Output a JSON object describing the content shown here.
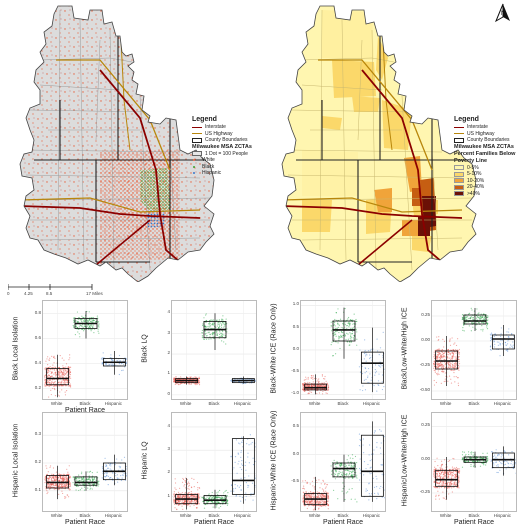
{
  "maps": {
    "north_arrow_label": "N",
    "left_legend": {
      "title": "Legend",
      "items": [
        {
          "label": "Interstate",
          "color": "#8b0000"
        },
        {
          "label": "US Highway",
          "color": "#b8860b"
        },
        {
          "label": "County Boundaries",
          "color": "#222222"
        }
      ],
      "subtitle": "Milwaukee MSA ZCTAs",
      "dot_title": "1 Dot = 100 People",
      "dots": [
        {
          "label": "White",
          "color": "#e8603c"
        },
        {
          "label": "Black",
          "color": "#3aa52f"
        },
        {
          "label": "Hispanic",
          "color": "#3a78c9"
        }
      ]
    },
    "right_legend": {
      "title": "Legend",
      "items": [
        {
          "label": "Interstate",
          "color": "#8b0000"
        },
        {
          "label": "US Highway",
          "color": "#b8860b"
        },
        {
          "label": "County Boundaries",
          "color": "#222222"
        }
      ],
      "subtitle": "Milwaukee MSA ZCTAs",
      "fill_title": "Percent Families Below Poverty Line",
      "fills": [
        {
          "label": "0-5%",
          "color": "#fff6b0"
        },
        {
          "label": "5-10%",
          "color": "#fbd86a"
        },
        {
          "label": "10-20%",
          "color": "#f0a43a"
        },
        {
          "label": "20-40%",
          "color": "#c65e12"
        },
        {
          "label": ">40%",
          "color": "#6b1006"
        }
      ]
    },
    "scale_bar": [
      "0",
      "4.25",
      "8.5",
      "17 Miles"
    ]
  },
  "chart_data": [
    {
      "type": "box",
      "ylabel": "Black Local Isolation",
      "xlabel": "Patient Race",
      "categories": [
        "White",
        "Black",
        "Hispanic"
      ],
      "yticks": [
        "0.8",
        "0.6",
        "0.4",
        "0.2"
      ],
      "ylim": [
        0.1,
        0.9
      ],
      "boxes": [
        {
          "q1": 0.23,
          "median": 0.28,
          "q3": 0.36,
          "lo": 0.13,
          "hi": 0.47
        },
        {
          "q1": 0.68,
          "median": 0.72,
          "q3": 0.76,
          "lo": 0.6,
          "hi": 0.82
        },
        {
          "q1": 0.38,
          "median": 0.41,
          "q3": 0.44,
          "lo": 0.31,
          "hi": 0.5
        }
      ]
    },
    {
      "type": "box",
      "ylabel": "Black LQ",
      "xlabel": "",
      "categories": [
        "White",
        "Black",
        "Hispanic"
      ],
      "yticks": [
        "4",
        "3",
        "2",
        "1",
        "0"
      ],
      "ylim": [
        -0.3,
        4.6
      ],
      "boxes": [
        {
          "q1": 0.6,
          "median": 0.7,
          "q3": 0.8,
          "lo": 0.5,
          "hi": 0.9
        },
        {
          "q1": 2.8,
          "median": 3.2,
          "q3": 3.6,
          "lo": 2.2,
          "hi": 4.0
        },
        {
          "q1": 0.6,
          "median": 0.7,
          "q3": 0.8,
          "lo": 0.55,
          "hi": 0.9
        }
      ]
    },
    {
      "type": "box",
      "ylabel": "Black-White ICE (Race Only)",
      "xlabel": "",
      "categories": [
        "White",
        "Black",
        "Hispanic"
      ],
      "yticks": [
        "1.0",
        "0.5",
        "0.0",
        "-0.5",
        "-1.0"
      ],
      "ylim": [
        -1.15,
        1.1
      ],
      "boxes": [
        {
          "q1": -0.9,
          "median": -0.85,
          "q3": -0.77,
          "lo": -1.0,
          "hi": -0.55
        },
        {
          "q1": 0.2,
          "median": 0.45,
          "q3": 0.65,
          "lo": -0.2,
          "hi": 0.95
        },
        {
          "q1": -0.75,
          "median": -0.3,
          "q3": -0.05,
          "lo": -0.95,
          "hi": 0.5
        }
      ]
    },
    {
      "type": "box",
      "ylabel": "Black/Low-White/High ICE",
      "xlabel": "",
      "categories": [
        "White",
        "Black",
        "Hispanic"
      ],
      "yticks": [
        "0.25",
        "0.00",
        "-0.25",
        "-0.50"
      ],
      "ylim": [
        -0.6,
        0.4
      ],
      "boxes": [
        {
          "q1": -0.28,
          "median": -0.2,
          "q3": -0.1,
          "lo": -0.45,
          "hi": 0.05
        },
        {
          "q1": 0.17,
          "median": 0.2,
          "q3": 0.26,
          "lo": 0.1,
          "hi": 0.33
        },
        {
          "q1": -0.08,
          "median": 0.02,
          "q3": 0.06,
          "lo": -0.15,
          "hi": 0.16
        }
      ]
    },
    {
      "type": "box",
      "ylabel": "Hispanic Local Isolation",
      "xlabel": "Patient Race",
      "categories": [
        "White",
        "Black",
        "Hispanic"
      ],
      "yticks": [
        "0.3",
        "0.2",
        "0.1"
      ],
      "ylim": [
        0.02,
        0.38
      ],
      "boxes": [
        {
          "q1": 0.11,
          "median": 0.13,
          "q3": 0.155,
          "lo": 0.07,
          "hi": 0.19
        },
        {
          "q1": 0.12,
          "median": 0.13,
          "q3": 0.15,
          "lo": 0.1,
          "hi": 0.17
        },
        {
          "q1": 0.14,
          "median": 0.17,
          "q3": 0.2,
          "lo": 0.12,
          "hi": 0.23
        }
      ]
    },
    {
      "type": "box",
      "ylabel": "Hispanic LQ",
      "xlabel": "Patient Race",
      "categories": [
        "White",
        "Black",
        "Hispanic"
      ],
      "yticks": [
        "4",
        "3",
        "2",
        "1"
      ],
      "ylim": [
        0.3,
        4.6
      ],
      "boxes": [
        {
          "q1": 0.7,
          "median": 0.9,
          "q3": 1.1,
          "lo": 0.45,
          "hi": 1.8
        },
        {
          "q1": 0.7,
          "median": 0.85,
          "q3": 1.05,
          "lo": 0.5,
          "hi": 1.3
        },
        {
          "q1": 1.1,
          "median": 1.7,
          "q3": 3.5,
          "lo": 0.7,
          "hi": 3.6
        }
      ]
    },
    {
      "type": "box",
      "ylabel": "Hispanic-White ICE (Race Only)",
      "xlabel": "Patient Race",
      "categories": [
        "White",
        "Black",
        "Hispanic"
      ],
      "yticks": [
        "0.5",
        "0.0",
        "-0.5"
      ],
      "ylim": [
        -1.05,
        0.75
      ],
      "boxes": [
        {
          "q1": -0.9,
          "median": -0.8,
          "q3": -0.7,
          "lo": -1.0,
          "hi": -0.4
        },
        {
          "q1": -0.4,
          "median": -0.25,
          "q3": -0.15,
          "lo": -0.85,
          "hi": 0.0
        },
        {
          "q1": -0.75,
          "median": -0.3,
          "q3": 0.35,
          "lo": -0.85,
          "hi": 0.6
        }
      ]
    },
    {
      "type": "box",
      "ylabel": "Hispanic/Low-White/High ICE",
      "xlabel": "Patient Race",
      "categories": [
        "White",
        "Black",
        "Hispanic"
      ],
      "yticks": [
        "0.25",
        "0.00",
        "-0.25"
      ],
      "ylim": [
        -0.4,
        0.35
      ],
      "boxes": [
        {
          "q1": -0.2,
          "median": -0.15,
          "q3": -0.08,
          "lo": -0.3,
          "hi": 0.02
        },
        {
          "q1": -0.02,
          "median": 0.0,
          "q3": 0.02,
          "lo": -0.06,
          "hi": 0.06
        },
        {
          "q1": -0.06,
          "median": 0.0,
          "q3": 0.05,
          "lo": -0.12,
          "hi": 0.1
        }
      ]
    }
  ]
}
